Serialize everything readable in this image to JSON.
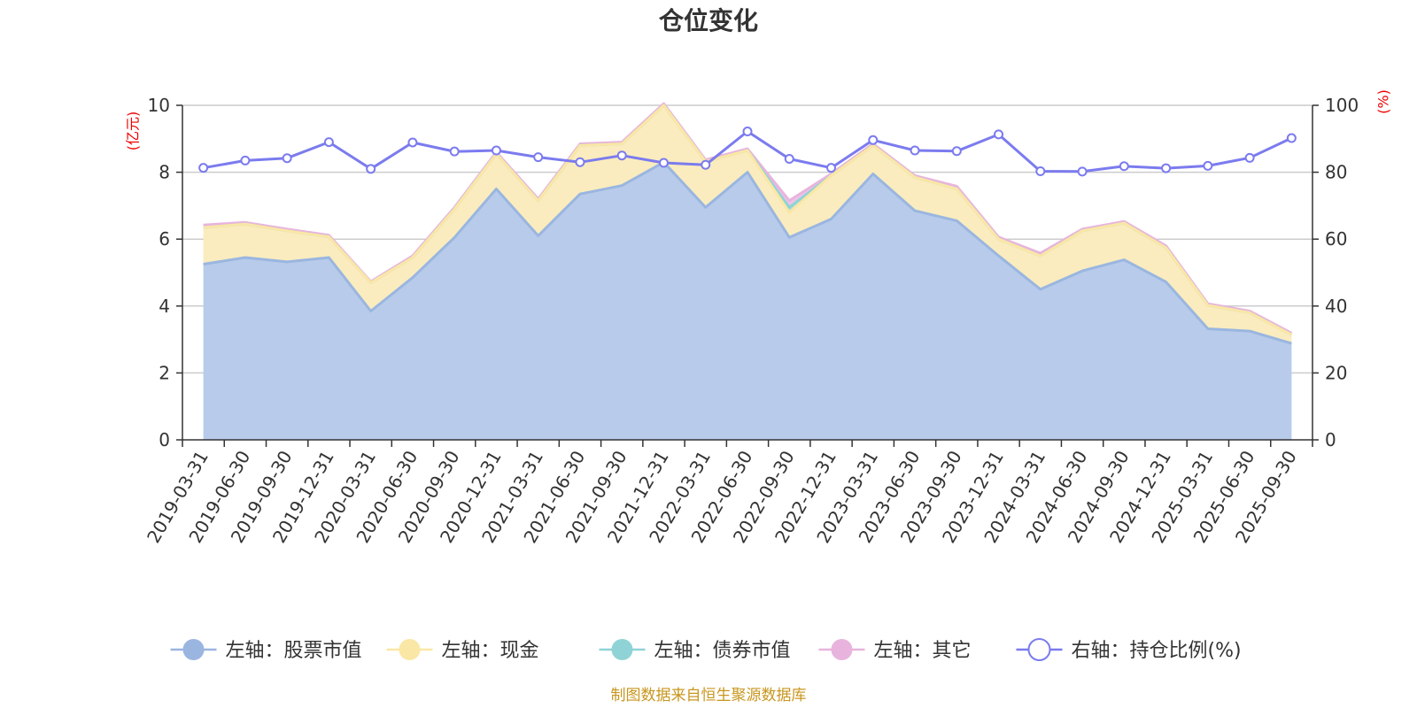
{
  "title": "仓位变化",
  "source": "制图数据来自恒生聚源数据库",
  "chart_data": {
    "type": "area",
    "title": "仓位变化",
    "categories": [
      "2019-03-31",
      "2019-06-30",
      "2019-09-30",
      "2019-12-31",
      "2020-03-31",
      "2020-06-30",
      "2020-09-30",
      "2020-12-31",
      "2021-03-31",
      "2021-06-30",
      "2021-09-30",
      "2021-12-31",
      "2022-03-31",
      "2022-06-30",
      "2022-09-30",
      "2022-12-31",
      "2023-03-31",
      "2023-06-30",
      "2023-09-30",
      "2023-12-31",
      "2024-03-31",
      "2024-06-30",
      "2024-09-30",
      "2024-12-31",
      "2025-03-31",
      "2025-06-30",
      "2025-09-30"
    ],
    "left_axis": {
      "unit": "(亿元)",
      "ylim": [
        0,
        10
      ],
      "ticks": [
        0,
        2,
        4,
        6,
        8,
        10
      ]
    },
    "right_axis": {
      "unit": "(%)",
      "ylim": [
        0,
        100
      ],
      "ticks": [
        0,
        20,
        40,
        60,
        80,
        100
      ]
    },
    "stacked": true,
    "grid": true,
    "legend_position": "bottom",
    "series": [
      {
        "name": "左轴：股票市值",
        "axis": "left",
        "type": "area",
        "color": "#9ab6e0",
        "fill": "#b8cbea",
        "values": [
          5.25,
          5.45,
          5.32,
          5.45,
          3.85,
          4.85,
          6.05,
          7.5,
          6.1,
          7.35,
          7.6,
          8.3,
          6.95,
          8.0,
          6.05,
          6.6,
          7.95,
          6.85,
          6.55,
          5.5,
          4.5,
          5.05,
          5.38,
          4.72,
          3.32,
          3.25,
          2.88
        ]
      },
      {
        "name": "左轴：现金",
        "axis": "left",
        "type": "area",
        "color": "#fae7a5",
        "fill": "#faecbe",
        "values": [
          1.1,
          1.0,
          0.93,
          0.62,
          0.85,
          0.6,
          0.85,
          1.05,
          1.05,
          1.45,
          1.25,
          1.7,
          1.37,
          0.65,
          0.75,
          1.3,
          0.85,
          1.0,
          0.95,
          0.5,
          1.0,
          1.2,
          1.1,
          1.02,
          0.7,
          0.55,
          0.26
        ]
      },
      {
        "name": "左轴：债券市值",
        "axis": "left",
        "type": "area",
        "color": "#8fd3d6",
        "fill": "#a9dedf",
        "values": [
          0,
          0,
          0,
          0,
          0,
          0,
          0,
          0,
          0,
          0,
          0,
          0,
          0,
          0,
          0.15,
          0,
          0,
          0,
          0,
          0,
          0,
          0,
          0,
          0,
          0,
          0,
          0
        ]
      },
      {
        "name": "左轴：其它",
        "axis": "left",
        "type": "area",
        "color": "#e8b4dd",
        "fill": "#eec3e6",
        "values": [
          0.07,
          0.05,
          0.05,
          0.05,
          0.03,
          0.05,
          0.05,
          0.05,
          0.05,
          0.05,
          0.05,
          0.05,
          0.05,
          0.05,
          0.2,
          0.05,
          0.05,
          0.05,
          0.08,
          0.06,
          0.08,
          0.05,
          0.05,
          0.06,
          0.05,
          0.05,
          0.05
        ]
      },
      {
        "name": "右轴：持仓比例(%)",
        "axis": "right",
        "type": "line",
        "color": "#7b7bef",
        "values": [
          81.3,
          83.5,
          84.2,
          89.0,
          81.0,
          88.9,
          86.2,
          86.5,
          84.5,
          83.0,
          85.0,
          82.8,
          82.2,
          92.2,
          84.0,
          81.3,
          89.6,
          86.5,
          86.3,
          91.3,
          80.3,
          80.2,
          81.8,
          81.2,
          81.9,
          84.3,
          90.2
        ]
      }
    ]
  }
}
